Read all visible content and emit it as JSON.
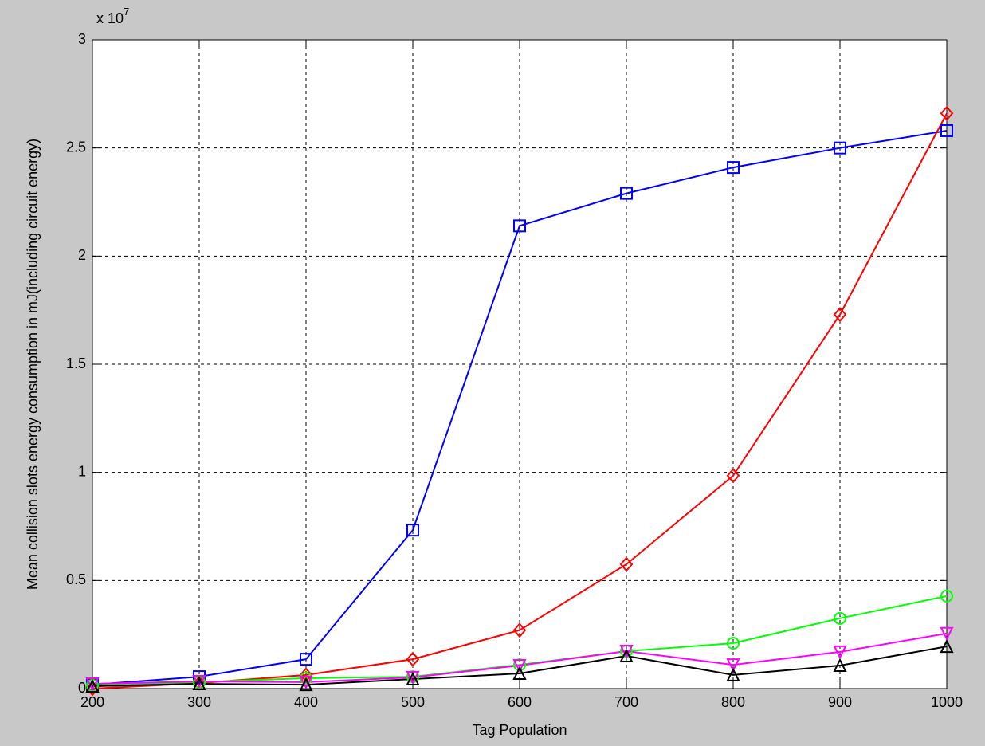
{
  "chart_data": {
    "type": "line",
    "x_label": "Tag Population",
    "y_label": "Mean collision slots energy consumption in mJ(including circuit energy)",
    "axis_multiplier": {
      "base": "x 10",
      "exponent": "7"
    },
    "x": [
      200,
      300,
      400,
      500,
      600,
      700,
      800,
      900,
      1000
    ],
    "xlim": [
      200,
      1000
    ],
    "xticks": [
      200,
      300,
      400,
      500,
      600,
      700,
      800,
      900,
      1000
    ],
    "ylim": [
      0,
      3
    ],
    "yticks": [
      0,
      0.5,
      1,
      1.5,
      2,
      2.5,
      3
    ],
    "grid": true,
    "series": [
      {
        "color": "#0000ff",
        "marker": "square",
        "values": [
          0.018,
          0.055,
          0.136,
          0.733,
          2.14,
          2.29,
          2.41,
          2.5,
          2.58
        ]
      },
      {
        "color": "#ff0000",
        "marker": "diamond",
        "values": [
          0.0,
          0.025,
          0.063,
          0.136,
          0.27,
          0.575,
          0.985,
          1.73,
          2.66
        ]
      },
      {
        "color": "#00ff00",
        "marker": "circle",
        "values": [
          0.015,
          0.03,
          0.048,
          0.055,
          0.11,
          0.173,
          0.21,
          0.325,
          0.428
        ]
      },
      {
        "color": "#ff00ff",
        "marker": "triangle-down",
        "values": [
          0.022,
          0.033,
          0.03,
          0.052,
          0.107,
          0.173,
          0.11,
          0.17,
          0.255
        ]
      },
      {
        "color": "#000000",
        "marker": "triangle-up",
        "values": [
          0.011,
          0.022,
          0.018,
          0.044,
          0.07,
          0.151,
          0.063,
          0.107,
          0.195
        ]
      }
    ]
  }
}
